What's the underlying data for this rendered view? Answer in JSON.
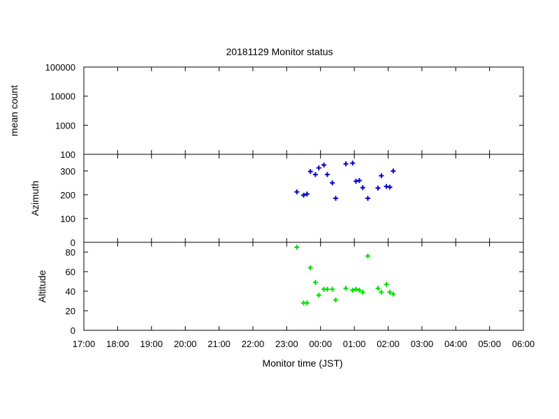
{
  "chart_data": {
    "type": "scatter",
    "title": "20181129 Monitor status",
    "xlabel": "Monitor time (JST)",
    "xlim": [
      0,
      13
    ],
    "x_ticks": [
      "17:00",
      "18:00",
      "19:00",
      "20:00",
      "21:00",
      "22:00",
      "23:00",
      "00:00",
      "01:00",
      "02:00",
      "03:00",
      "04:00",
      "05:00",
      "06:00"
    ],
    "panels": [
      {
        "name": "mean",
        "ylabel": "mean count",
        "scale": "log",
        "ylim": [
          100,
          100000
        ],
        "y_ticks": [
          100,
          1000,
          10000,
          100000
        ],
        "y_tick_labels": [
          "100",
          "1000",
          "10000",
          "100000"
        ],
        "color": "#0000cc",
        "points": []
      },
      {
        "name": "azimuth",
        "ylabel": "Azimuth",
        "scale": "linear",
        "ylim": [
          0,
          370
        ],
        "y_ticks": [
          0,
          100,
          200,
          300
        ],
        "y_tick_labels": [
          "0",
          "100",
          "200",
          "300"
        ],
        "color": "#0000cc",
        "points": [
          {
            "t": "23:18",
            "y": 212
          },
          {
            "t": "23:30",
            "y": 198
          },
          {
            "t": "23:36",
            "y": 203
          },
          {
            "t": "23:42",
            "y": 298
          },
          {
            "t": "23:51",
            "y": 285
          },
          {
            "t": "23:57",
            "y": 313
          },
          {
            "t": "00:06",
            "y": 325
          },
          {
            "t": "00:12",
            "y": 285
          },
          {
            "t": "00:21",
            "y": 250
          },
          {
            "t": "00:27",
            "y": 185
          },
          {
            "t": "00:45",
            "y": 330
          },
          {
            "t": "00:57",
            "y": 333
          },
          {
            "t": "01:03",
            "y": 257
          },
          {
            "t": "01:09",
            "y": 260
          },
          {
            "t": "01:15",
            "y": 230
          },
          {
            "t": "01:24",
            "y": 185
          },
          {
            "t": "01:42",
            "y": 228
          },
          {
            "t": "01:48",
            "y": 280
          },
          {
            "t": "01:57",
            "y": 235
          },
          {
            "t": "02:03",
            "y": 232
          },
          {
            "t": "02:09",
            "y": 300
          }
        ]
      },
      {
        "name": "altitude",
        "ylabel": "Altitude",
        "scale": "linear",
        "ylim": [
          0,
          90
        ],
        "y_ticks": [
          0,
          20,
          40,
          60,
          80
        ],
        "y_tick_labels": [
          "0",
          "20",
          "40",
          "60",
          "80"
        ],
        "color": "#00dd00",
        "points": [
          {
            "t": "23:18",
            "y": 85
          },
          {
            "t": "23:30",
            "y": 28
          },
          {
            "t": "23:36",
            "y": 28
          },
          {
            "t": "23:42",
            "y": 64
          },
          {
            "t": "23:51",
            "y": 49
          },
          {
            "t": "23:57",
            "y": 36
          },
          {
            "t": "00:06",
            "y": 42
          },
          {
            "t": "00:12",
            "y": 42
          },
          {
            "t": "00:21",
            "y": 42
          },
          {
            "t": "00:27",
            "y": 31
          },
          {
            "t": "00:45",
            "y": 43
          },
          {
            "t": "00:57",
            "y": 41
          },
          {
            "t": "01:03",
            "y": 42
          },
          {
            "t": "01:09",
            "y": 41
          },
          {
            "t": "01:15",
            "y": 39
          },
          {
            "t": "01:24",
            "y": 76
          },
          {
            "t": "01:42",
            "y": 43
          },
          {
            "t": "01:48",
            "y": 39
          },
          {
            "t": "01:57",
            "y": 47
          },
          {
            "t": "02:03",
            "y": 39
          },
          {
            "t": "02:09",
            "y": 37
          }
        ]
      }
    ],
    "grid": false,
    "legend": "none"
  }
}
